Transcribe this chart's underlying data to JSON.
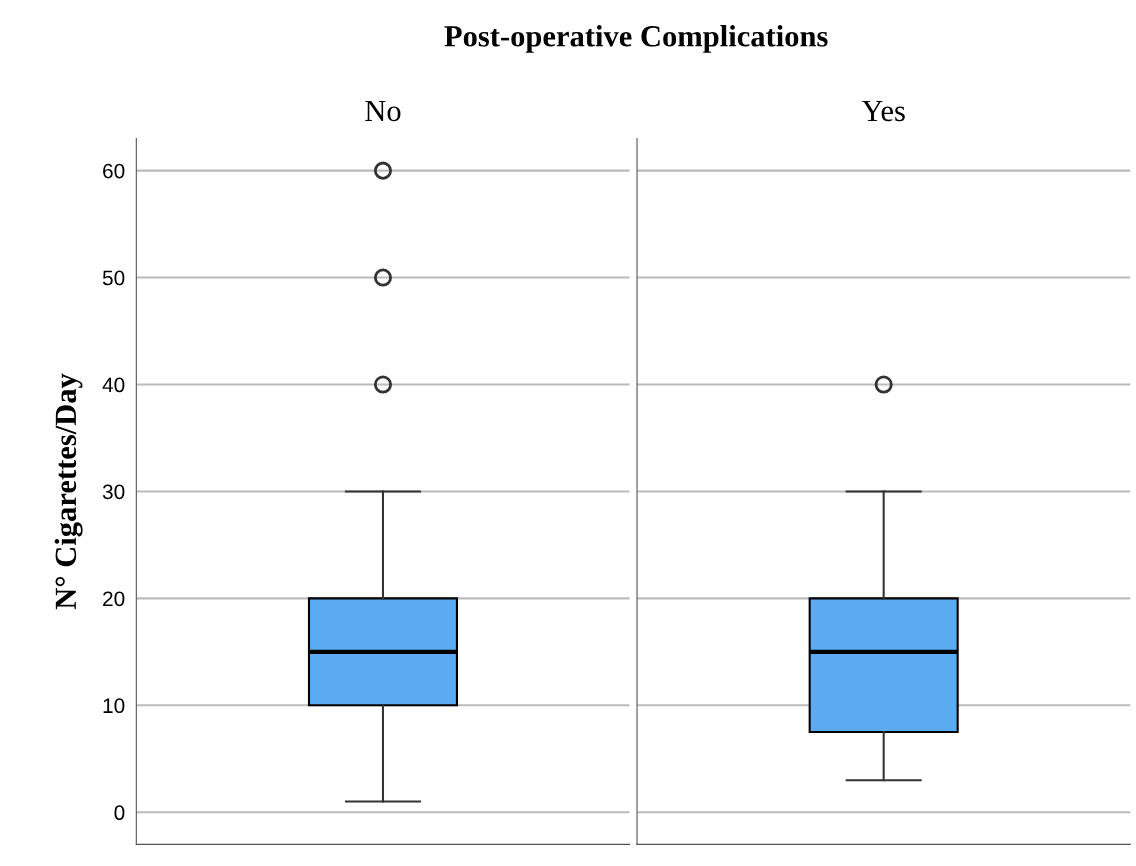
{
  "chart_data": {
    "type": "box",
    "xlabel": "Post-operative Complications",
    "ylabel": "N° Cigarettes/Day",
    "categories": [
      "No",
      "Yes"
    ],
    "color": "#5aabf2",
    "boxes": [
      {
        "low": 1,
        "q1": 10,
        "median": 15,
        "q3": 20,
        "high": 30,
        "outliers": [
          40,
          50,
          60
        ]
      },
      {
        "low": 3,
        "q1": 7.5,
        "median": 15,
        "q3": 20,
        "high": 30,
        "outliers": [
          40
        ]
      }
    ],
    "ylim": [
      -3,
      63
    ],
    "yticks": [
      0,
      10,
      20,
      30,
      40,
      50,
      60
    ],
    "grid": "y"
  }
}
